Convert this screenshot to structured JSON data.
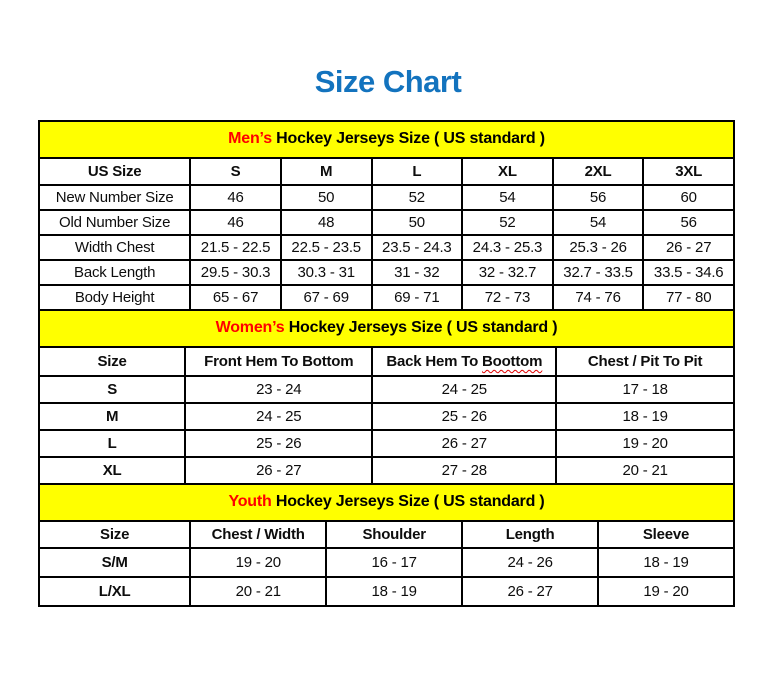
{
  "page_title": "Size Chart",
  "colors": {
    "title": "#1373BE",
    "band_background": "#FFFF00",
    "accent_red": "#FF0000",
    "border": "#000000"
  },
  "chart_data": [
    {
      "type": "table",
      "id": "mens",
      "title": "Men’s Hockey Jerseys Size ( US standard )",
      "title_highlight": "Men’s",
      "title_rest": " Hockey Jerseys Size ( US standard )",
      "columns": [
        "US Size",
        "S",
        "M",
        "L",
        "XL",
        "2XL",
        "3XL"
      ],
      "rows": [
        {
          "label": "New Number Size",
          "values": [
            "46",
            "50",
            "52",
            "54",
            "56",
            "60"
          ]
        },
        {
          "label": "Old Number Size",
          "values": [
            "46",
            "48",
            "50",
            "52",
            "54",
            "56"
          ]
        },
        {
          "label": "Width Chest",
          "values": [
            "21.5 - 22.5",
            "22.5 - 23.5",
            "23.5 - 24.3",
            "24.3 - 25.3",
            "25.3 - 26",
            "26 - 27"
          ]
        },
        {
          "label": "Back Length",
          "values": [
            "29.5 - 30.3",
            "30.3 - 31",
            "31 - 32",
            "32 - 32.7",
            "32.7 - 33.5",
            "33.5 - 34.6"
          ]
        },
        {
          "label": "Body Height",
          "values": [
            "65 - 67",
            "67 - 69",
            "69 - 71",
            "72 - 73",
            "74 - 76",
            "77 - 80"
          ]
        }
      ]
    },
    {
      "type": "table",
      "id": "womens",
      "title": "Women’s Hockey Jerseys Size ( US standard )",
      "title_highlight": "Women’s",
      "title_rest": " Hockey Jerseys Size ( US standard )",
      "columns": [
        "Size",
        "Front Hem To Bottom",
        "Back Hem To Boottom",
        "Chest / Pit To Pit"
      ],
      "wavy_header": {
        "index": 2,
        "prefix": "Back Hem To ",
        "word": "Boottom"
      },
      "rows": [
        {
          "label": "S",
          "values": [
            "23 - 24",
            "24 - 25",
            "17 - 18"
          ]
        },
        {
          "label": "M",
          "values": [
            "24 - 25",
            "25 - 26",
            "18 - 19"
          ]
        },
        {
          "label": "L",
          "values": [
            "25 - 26",
            "26 - 27",
            "19 - 20"
          ]
        },
        {
          "label": "XL",
          "values": [
            "26 - 27",
            "27 - 28",
            "20 - 21"
          ]
        }
      ]
    },
    {
      "type": "table",
      "id": "youth",
      "title": "Youth Hockey Jerseys Size ( US standard )",
      "title_highlight": "Youth",
      "title_rest": " Hockey Jerseys Size ( US standard )",
      "columns": [
        "Size",
        "Chest / Width",
        "Shoulder",
        "Length",
        "Sleeve"
      ],
      "rows": [
        {
          "label": "S/M",
          "values": [
            "19 - 20",
            "16 - 17",
            "24 - 26",
            "18 - 19"
          ]
        },
        {
          "label": "L/XL",
          "values": [
            "20 - 21",
            "18 - 19",
            "26 - 27",
            "19 - 20"
          ]
        }
      ]
    }
  ]
}
